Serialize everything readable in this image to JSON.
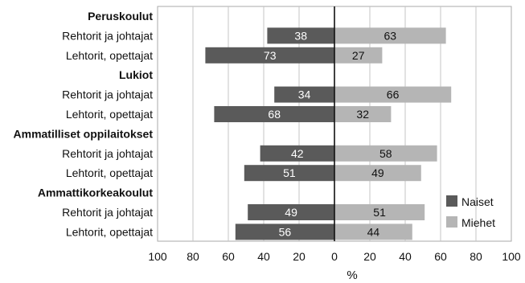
{
  "chart_data": {
    "type": "bar",
    "orientation": "horizontal-diverging",
    "xlabel": "%",
    "xlim": [
      -100,
      100
    ],
    "ticks": [
      "100",
      "80",
      "60",
      "40",
      "20",
      "0",
      "20",
      "40",
      "60",
      "80",
      "100"
    ],
    "grid": true,
    "legend_position": "bottom-right",
    "groups": [
      {
        "name": "Peruskoulut",
        "rows": [
          {
            "label": "Rehtorit ja johtajat",
            "naiset": 38,
            "miehet": 63
          },
          {
            "label": "Lehtorit, opettajat",
            "naiset": 73,
            "miehet": 27
          }
        ]
      },
      {
        "name": "Lukiot",
        "rows": [
          {
            "label": "Rehtorit ja johtajat",
            "naiset": 34,
            "miehet": 66
          },
          {
            "label": "Lehtorit, opettajat",
            "naiset": 68,
            "miehet": 32
          }
        ]
      },
      {
        "name": "Ammatilliset oppilaitokset",
        "rows": [
          {
            "label": "Rehtorit ja johtajat",
            "naiset": 42,
            "miehet": 58
          },
          {
            "label": "Lehtorit, opettajat",
            "naiset": 51,
            "miehet": 49
          }
        ]
      },
      {
        "name": "Ammattikorkeakoulut",
        "rows": [
          {
            "label": "Rehtorit ja johtajat",
            "naiset": 49,
            "miehet": 51
          },
          {
            "label": "Lehtorit, opettajat",
            "naiset": 56,
            "miehet": 44
          }
        ]
      }
    ],
    "series": [
      {
        "name": "Naiset",
        "key": "naiset",
        "color": "#5a5a5a"
      },
      {
        "name": "Miehet",
        "key": "miehet",
        "color": "#b5b5b5"
      }
    ]
  }
}
